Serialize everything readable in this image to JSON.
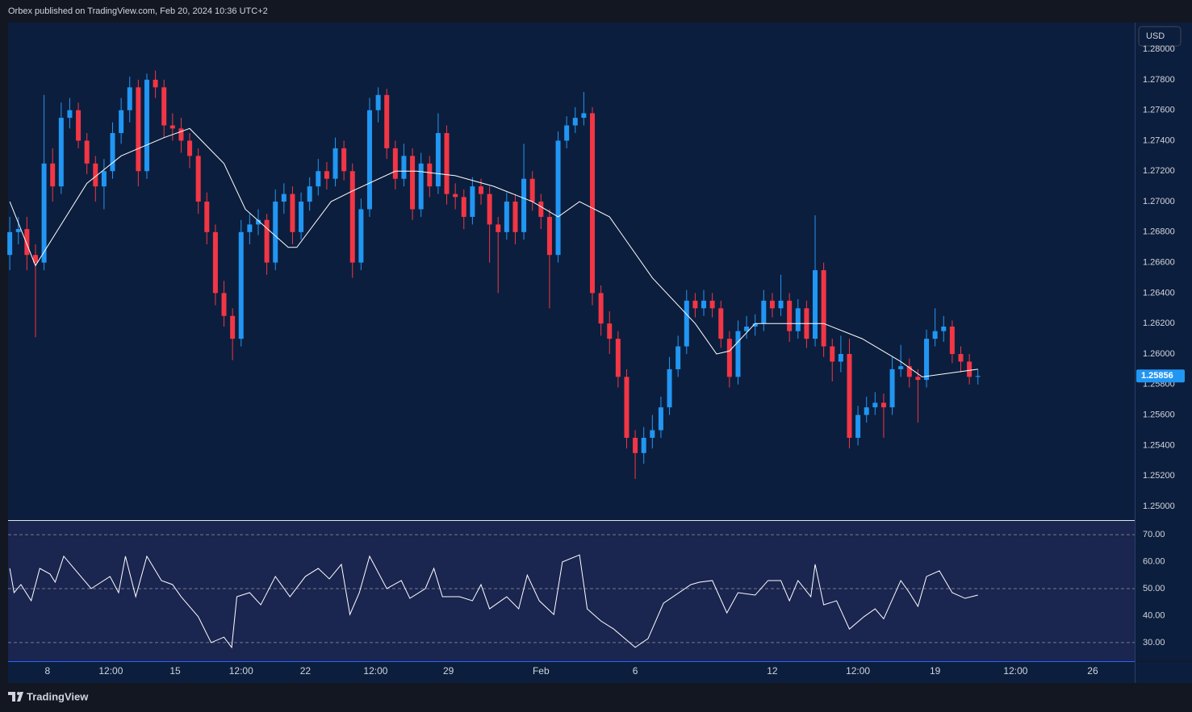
{
  "header": {
    "text": "Orbex published on TradingView.com, Feb 20, 2024 10:36 UTC+2"
  },
  "currency_button": "USD",
  "footer": {
    "logo_text": "TradingView"
  },
  "chart_data": [
    {
      "type": "candlestick",
      "up_color": "#2196f3",
      "down_color": "#f23645",
      "ohlc": [
        [
          1.2665,
          1.269,
          1.2655,
          1.268
        ],
        [
          1.268,
          1.269,
          1.2672,
          1.2682
        ],
        [
          1.2682,
          1.269,
          1.2655,
          1.2665
        ],
        [
          1.2665,
          1.2672,
          1.2611,
          1.266
        ],
        [
          1.266,
          1.277,
          1.2655,
          1.2725
        ],
        [
          1.2725,
          1.2735,
          1.27,
          1.271
        ],
        [
          1.271,
          1.2765,
          1.2705,
          1.2755
        ],
        [
          1.2755,
          1.2768,
          1.2748,
          1.276
        ],
        [
          1.276,
          1.2765,
          1.2735,
          1.274
        ],
        [
          1.274,
          1.2745,
          1.2718,
          1.2725
        ],
        [
          1.2725,
          1.273,
          1.27,
          1.271
        ],
        [
          1.271,
          1.2728,
          1.2695,
          1.272
        ],
        [
          1.272,
          1.2752,
          1.2715,
          1.2745
        ],
        [
          1.2745,
          1.2768,
          1.2738,
          1.276
        ],
        [
          1.276,
          1.2782,
          1.2752,
          1.2775
        ],
        [
          1.2775,
          1.278,
          1.271,
          1.272
        ],
        [
          1.272,
          1.2784,
          1.2715,
          1.278
        ],
        [
          1.278,
          1.2786,
          1.2768,
          1.2775
        ],
        [
          1.2775,
          1.278,
          1.2742,
          1.275
        ],
        [
          1.275,
          1.2758,
          1.274,
          1.2748
        ],
        [
          1.2748,
          1.2755,
          1.2732,
          1.274
        ],
        [
          1.274,
          1.2745,
          1.2722,
          1.273
        ],
        [
          1.273,
          1.2735,
          1.2692,
          1.27
        ],
        [
          1.27,
          1.2706,
          1.2672,
          1.268
        ],
        [
          1.268,
          1.2685,
          1.2632,
          1.264
        ],
        [
          1.264,
          1.2648,
          1.2618,
          1.2625
        ],
        [
          1.2625,
          1.263,
          1.2596,
          1.261
        ],
        [
          1.261,
          1.2688,
          1.2605,
          1.268
        ],
        [
          1.268,
          1.2692,
          1.2672,
          1.2685
        ],
        [
          1.2685,
          1.2695,
          1.2678,
          1.2688
        ],
        [
          1.2688,
          1.2692,
          1.2652,
          1.266
        ],
        [
          1.266,
          1.2708,
          1.2655,
          1.27
        ],
        [
          1.27,
          1.2712,
          1.2692,
          1.2705
        ],
        [
          1.2705,
          1.271,
          1.2672,
          1.268
        ],
        [
          1.268,
          1.2706,
          1.2675,
          1.27
        ],
        [
          1.27,
          1.2716,
          1.2694,
          1.271
        ],
        [
          1.271,
          1.2728,
          1.2704,
          1.272
        ],
        [
          1.272,
          1.2726,
          1.2708,
          1.2715
        ],
        [
          1.2715,
          1.2742,
          1.271,
          1.2735
        ],
        [
          1.2735,
          1.274,
          1.2714,
          1.272
        ],
        [
          1.272,
          1.2725,
          1.265,
          1.266
        ],
        [
          1.266,
          1.2702,
          1.2655,
          1.2695
        ],
        [
          1.2695,
          1.2768,
          1.269,
          1.276
        ],
        [
          1.276,
          1.2775,
          1.2752,
          1.277
        ],
        [
          1.277,
          1.2774,
          1.2728,
          1.2735
        ],
        [
          1.2735,
          1.274,
          1.2708,
          1.2715
        ],
        [
          1.2715,
          1.2738,
          1.271,
          1.273
        ],
        [
          1.273,
          1.2735,
          1.2688,
          1.2695
        ],
        [
          1.2695,
          1.2732,
          1.269,
          1.2725
        ],
        [
          1.2725,
          1.273,
          1.2703,
          1.271
        ],
        [
          1.271,
          1.2758,
          1.2705,
          1.2745
        ],
        [
          1.2745,
          1.275,
          1.2698,
          1.2705
        ],
        [
          1.2705,
          1.2712,
          1.2695,
          1.2703
        ],
        [
          1.2703,
          1.2708,
          1.2682,
          1.269
        ],
        [
          1.269,
          1.2716,
          1.2685,
          1.271
        ],
        [
          1.271,
          1.2715,
          1.2698,
          1.2705
        ],
        [
          1.2705,
          1.271,
          1.266,
          1.2685
        ],
        [
          1.2685,
          1.269,
          1.264,
          1.268
        ],
        [
          1.268,
          1.2706,
          1.2675,
          1.27
        ],
        [
          1.27,
          1.2705,
          1.2672,
          1.268
        ],
        [
          1.268,
          1.2738,
          1.2675,
          1.2715
        ],
        [
          1.2715,
          1.272,
          1.2694,
          1.27
        ],
        [
          1.27,
          1.2705,
          1.2682,
          1.269
        ],
        [
          1.269,
          1.2695,
          1.263,
          1.2665
        ],
        [
          1.2665,
          1.2746,
          1.266,
          1.274
        ],
        [
          1.274,
          1.2756,
          1.2735,
          1.275
        ],
        [
          1.275,
          1.2762,
          1.2745,
          1.2755
        ],
        [
          1.2755,
          1.2772,
          1.275,
          1.2758
        ],
        [
          1.2758,
          1.2762,
          1.2632,
          1.264
        ],
        [
          1.264,
          1.2645,
          1.2612,
          1.262
        ],
        [
          1.262,
          1.2628,
          1.26,
          1.261
        ],
        [
          1.261,
          1.2615,
          1.2578,
          1.2585
        ],
        [
          1.2585,
          1.259,
          1.2538,
          1.2545
        ],
        [
          1.2545,
          1.255,
          1.2518,
          1.2535
        ],
        [
          1.2535,
          1.2552,
          1.2528,
          1.2545
        ],
        [
          1.2545,
          1.256,
          1.2538,
          1.255
        ],
        [
          1.255,
          1.2572,
          1.2545,
          1.2565
        ],
        [
          1.2565,
          1.2598,
          1.256,
          1.259
        ],
        [
          1.259,
          1.2612,
          1.2585,
          1.2605
        ],
        [
          1.2605,
          1.2642,
          1.26,
          1.2635
        ],
        [
          1.2635,
          1.264,
          1.2624,
          1.263
        ],
        [
          1.263,
          1.2642,
          1.2625,
          1.2635
        ],
        [
          1.2635,
          1.264,
          1.2624,
          1.263
        ],
        [
          1.263,
          1.2635,
          1.2604,
          1.261
        ],
        [
          1.261,
          1.2615,
          1.2578,
          1.2585
        ],
        [
          1.2585,
          1.2622,
          1.258,
          1.2615
        ],
        [
          1.2615,
          1.2625,
          1.261,
          1.2618
        ],
        [
          1.2618,
          1.2626,
          1.2612,
          1.262
        ],
        [
          1.262,
          1.2642,
          1.2615,
          1.2635
        ],
        [
          1.2635,
          1.264,
          1.2624,
          1.263
        ],
        [
          1.263,
          1.2652,
          1.2625,
          1.2635
        ],
        [
          1.2635,
          1.264,
          1.2608,
          1.2615
        ],
        [
          1.2615,
          1.2636,
          1.261,
          1.263
        ],
        [
          1.263,
          1.2635,
          1.2604,
          1.261
        ],
        [
          1.261,
          1.2691,
          1.2605,
          1.2655
        ],
        [
          1.2655,
          1.266,
          1.2598,
          1.2605
        ],
        [
          1.2605,
          1.261,
          1.2582,
          1.2595
        ],
        [
          1.2595,
          1.2612,
          1.2588,
          1.26
        ],
        [
          1.26,
          1.261,
          1.2538,
          1.2545
        ],
        [
          1.2545,
          1.2566,
          1.254,
          1.256
        ],
        [
          1.256,
          1.2572,
          1.2555,
          1.2565
        ],
        [
          1.2565,
          1.2575,
          1.256,
          1.2568
        ],
        [
          1.2568,
          1.2574,
          1.2545,
          1.2565
        ],
        [
          1.2565,
          1.2598,
          1.256,
          1.259
        ],
        [
          1.259,
          1.2606,
          1.2585,
          1.2592
        ],
        [
          1.2592,
          1.2597,
          1.2578,
          1.2585
        ],
        [
          1.2585,
          1.259,
          1.2555,
          1.2583
        ],
        [
          1.2583,
          1.2616,
          1.2578,
          1.261
        ],
        [
          1.261,
          1.263,
          1.2605,
          1.2615
        ],
        [
          1.2615,
          1.2625,
          1.2608,
          1.2618
        ],
        [
          1.2618,
          1.2622,
          1.2594,
          1.26
        ],
        [
          1.26,
          1.2605,
          1.2588,
          1.2595
        ],
        [
          1.2595,
          1.26,
          1.258,
          1.2585
        ],
        [
          1.2585,
          1.259,
          1.258,
          1.25856
        ]
      ],
      "ma": {
        "color": "#ffffff",
        "x": [
          0,
          3,
          9,
          13,
          18,
          21,
          25,
          27.5,
          32.5,
          33.5,
          37.5,
          40,
          45,
          47.5,
          52,
          56.5,
          61,
          64,
          66.5,
          70,
          75,
          80,
          82.5,
          84,
          87,
          91,
          95,
          99.5,
          104,
          106.5,
          113
        ],
        "values": [
          1.27,
          1.2658,
          1.2712,
          1.273,
          1.2742,
          1.2748,
          1.2725,
          1.2695,
          1.267,
          1.267,
          1.27,
          1.2707,
          1.272,
          1.272,
          1.2717,
          1.271,
          1.27,
          1.269,
          1.27,
          1.269,
          1.265,
          1.262,
          1.26,
          1.2602,
          1.262,
          1.262,
          1.262,
          1.261,
          1.2595,
          1.2585,
          1.259
        ]
      },
      "last_price": 1.25856,
      "xlim": [
        -0.2,
        131.3
      ],
      "xticks": [
        {
          "value": 4.4,
          "label": "8"
        },
        {
          "value": 11.8,
          "label": "12:00"
        },
        {
          "value": 19.3,
          "label": "15"
        },
        {
          "value": 27,
          "label": "12:00"
        },
        {
          "value": 34.5,
          "label": "22"
        },
        {
          "value": 42.7,
          "label": "12:00"
        },
        {
          "value": 51.2,
          "label": "29"
        },
        {
          "value": 62,
          "label": "Feb"
        },
        {
          "value": 73,
          "label": "6"
        },
        {
          "value": 89,
          "label": "12"
        },
        {
          "value": 99,
          "label": "12:00"
        },
        {
          "value": 108,
          "label": "19"
        },
        {
          "value": 117.4,
          "label": "12:00"
        },
        {
          "value": 126.4,
          "label": "26"
        }
      ],
      "ylim": [
        1.2491,
        1.28175
      ],
      "yticks": [
        {
          "value": 1.25,
          "label": "1.25000"
        },
        {
          "value": 1.252,
          "label": "1.25200"
        },
        {
          "value": 1.254,
          "label": "1.25400"
        },
        {
          "value": 1.256,
          "label": "1.25600"
        },
        {
          "value": 1.258,
          "label": "1.25800"
        },
        {
          "value": 1.26,
          "label": "1.26000"
        },
        {
          "value": 1.262,
          "label": "1.26200"
        },
        {
          "value": 1.264,
          "label": "1.26400"
        },
        {
          "value": 1.266,
          "label": "1.26600"
        },
        {
          "value": 1.268,
          "label": "1.26800"
        },
        {
          "value": 1.27,
          "label": "1.27000"
        },
        {
          "value": 1.272,
          "label": "1.27200"
        },
        {
          "value": 1.274,
          "label": "1.27400"
        },
        {
          "value": 1.276,
          "label": "1.27600"
        },
        {
          "value": 1.278,
          "label": "1.27800"
        },
        {
          "value": 1.28,
          "label": "1.28000"
        }
      ]
    },
    {
      "type": "line",
      "color": "#ffffff",
      "x": [
        0,
        0.5,
        1.3,
        2.5,
        3.5,
        4.7,
        5.3,
        6.3,
        7.5,
        9.5,
        11.7,
        12.7,
        13.5,
        14.7,
        16,
        17.7,
        19,
        20,
        22,
        23.5,
        25,
        25.9,
        26.5,
        28,
        29.3,
        31,
        32.7,
        34.5,
        36,
        37.3,
        38.7,
        39.7,
        40.8,
        42,
        44,
        45.7,
        46.7,
        48.5,
        49.5,
        50.5,
        52.5,
        54,
        55,
        56,
        58,
        59.4,
        60.4,
        61.8,
        63.5,
        64.5,
        66.5,
        67.4,
        69,
        70.5,
        73,
        74.5,
        76.3,
        79.5,
        80.5,
        82,
        83.7,
        85,
        87,
        88.5,
        90,
        91,
        92,
        93.5,
        94,
        95,
        96.5,
        98,
        99.7,
        101,
        102,
        104,
        105,
        106,
        107,
        108.5,
        110,
        111.5,
        113
      ],
      "values": [
        57.5,
        48.5,
        51.5,
        45.5,
        57.5,
        55.4,
        52.4,
        62,
        57.5,
        50,
        54.5,
        48.5,
        62,
        47,
        62,
        53,
        51.5,
        47,
        39.6,
        30,
        32,
        28.2,
        47,
        48.5,
        44,
        54.5,
        47,
        54.5,
        57.5,
        53.6,
        59,
        40.4,
        48.5,
        62,
        50,
        53,
        46.4,
        50,
        57.5,
        47,
        47,
        45.5,
        51.5,
        42.5,
        47,
        42.5,
        55,
        45.5,
        40.4,
        59.9,
        62.5,
        42.5,
        38,
        35,
        28.2,
        31.5,
        44.6,
        51.5,
        52.4,
        53,
        41,
        48.5,
        47.6,
        53,
        53,
        45.5,
        53,
        47,
        59,
        44,
        45.5,
        35,
        39.6,
        42.5,
        38.8,
        53,
        48.5,
        43.4,
        54.5,
        56.6,
        48.5,
        46.4,
        47.6
      ],
      "levels": [
        70,
        50,
        30
      ],
      "xlim": [
        -0.2,
        131.3
      ],
      "ylim": [
        23.1,
        75.1
      ],
      "yticks": [
        {
          "value": 30,
          "label": "30.00"
        },
        {
          "value": 40,
          "label": "40.00"
        },
        {
          "value": 50,
          "label": "50.00"
        },
        {
          "value": 60,
          "label": "60.00"
        },
        {
          "value": 70,
          "label": "70.00"
        }
      ]
    }
  ]
}
